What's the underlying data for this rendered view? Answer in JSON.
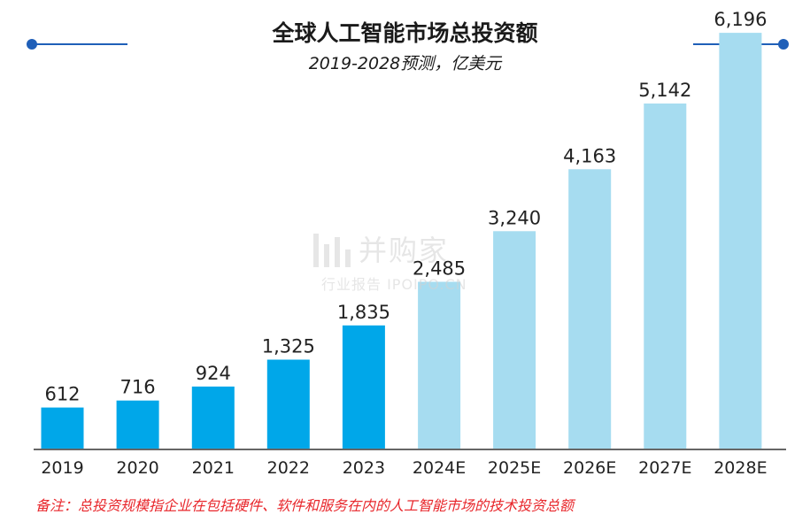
{
  "colors": {
    "actual_bar": "#00a7e9",
    "forecast_bar": "#a6dcf0",
    "accent": "#1f5fb8",
    "footnote": "#e8262b"
  },
  "watermark": {
    "main": "并购家",
    "sub": "行业报告 IPOIPO.CN"
  },
  "footnote": "备注：总投资规模指企业在包括硬件、软件和服务在内的人工智能市场的技术投资总额",
  "chart_data": {
    "type": "bar",
    "title": "全球人工智能市场总投资额",
    "subtitle": "2019-2028预测，亿美元",
    "xlabel": "",
    "ylabel": "",
    "ylim": [
      0,
      6500
    ],
    "grid": false,
    "legend": "none",
    "categories": [
      "2019",
      "2020",
      "2021",
      "2022",
      "2023",
      "2024E",
      "2025E",
      "2026E",
      "2027E",
      "2028E"
    ],
    "values": [
      612,
      716,
      924,
      1325,
      1835,
      2485,
      3240,
      4163,
      5142,
      6196
    ],
    "value_labels": [
      "612",
      "716",
      "924",
      "1,325",
      "1,835",
      "2,485",
      "3,240",
      "4,163",
      "5,142",
      "6,196"
    ],
    "forecast": [
      false,
      false,
      false,
      false,
      false,
      true,
      true,
      true,
      true,
      true
    ]
  }
}
